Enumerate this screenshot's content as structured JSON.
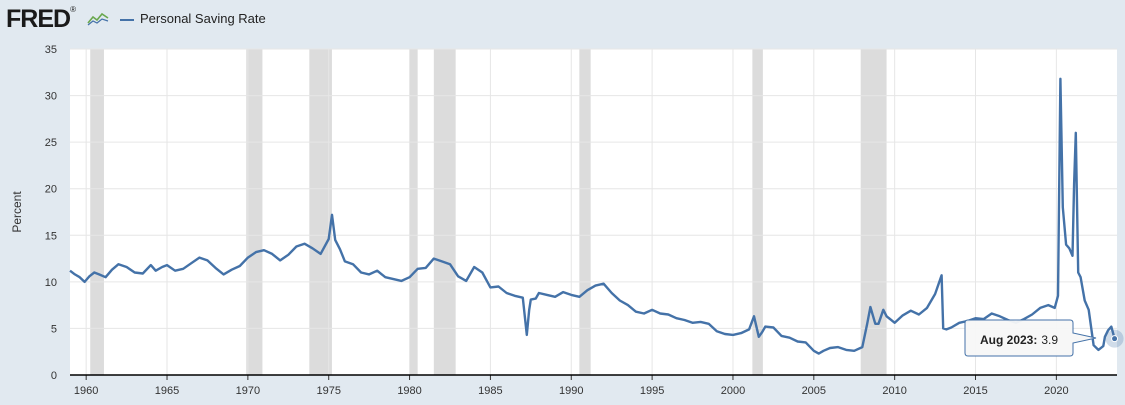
{
  "header": {
    "logo_text": "FRED",
    "logo_mark": "®",
    "legend_label": "Personal Saving Rate"
  },
  "tooltip": {
    "label": "Aug 2023:",
    "value": "3.9"
  },
  "colors": {
    "series": "#4472a8",
    "recession": "#dcdcdc",
    "background": "#e1e9f0",
    "plot": "#ffffff"
  },
  "chart_data": {
    "type": "line",
    "title": "Personal Saving Rate",
    "xlabel": "",
    "ylabel": "Percent",
    "xlim": [
      1959.0,
      2023.75
    ],
    "ylim": [
      0,
      35
    ],
    "y_ticks": [
      0,
      5,
      10,
      15,
      20,
      25,
      30,
      35
    ],
    "x_ticks": [
      1960,
      1965,
      1970,
      1975,
      1980,
      1985,
      1990,
      1995,
      2000,
      2005,
      2010,
      2015,
      2020
    ],
    "grid": true,
    "recessions": [
      [
        1960.25,
        1961.1
      ],
      [
        1969.9,
        1970.9
      ],
      [
        1973.8,
        1975.2
      ],
      [
        1980.0,
        1980.5
      ],
      [
        1981.5,
        1982.85
      ],
      [
        1990.5,
        1991.2
      ],
      [
        2001.2,
        2001.85
      ],
      [
        2007.9,
        2009.5
      ]
    ],
    "series": [
      {
        "name": "Personal Saving Rate",
        "x": [
          1959.0,
          1959.3,
          1959.6,
          1959.9,
          1960.2,
          1960.5,
          1960.8,
          1961.2,
          1961.6,
          1962.0,
          1962.5,
          1963.0,
          1963.5,
          1964.0,
          1964.3,
          1964.7,
          1965.0,
          1965.5,
          1966.0,
          1966.5,
          1967.0,
          1967.5,
          1968.0,
          1968.5,
          1969.0,
          1969.5,
          1970.0,
          1970.5,
          1971.0,
          1971.5,
          1972.0,
          1972.5,
          1973.0,
          1973.5,
          1974.0,
          1974.5,
          1975.0,
          1975.2,
          1975.4,
          1975.7,
          1976.0,
          1976.5,
          1977.0,
          1977.5,
          1978.0,
          1978.5,
          1979.0,
          1979.5,
          1980.0,
          1980.5,
          1981.0,
          1981.5,
          1982.0,
          1982.5,
          1983.0,
          1983.5,
          1984.0,
          1984.5,
          1985.0,
          1985.5,
          1986.0,
          1986.5,
          1987.0,
          1987.25,
          1987.4,
          1987.5,
          1987.8,
          1988.0,
          1988.5,
          1989.0,
          1989.5,
          1990.0,
          1990.5,
          1991.0,
          1991.5,
          1992.0,
          1992.5,
          1993.0,
          1993.5,
          1994.0,
          1994.5,
          1995.0,
          1995.5,
          1996.0,
          1996.5,
          1997.0,
          1997.5,
          1998.0,
          1998.5,
          1999.0,
          1999.5,
          2000.0,
          2000.5,
          2001.0,
          2001.3,
          2001.6,
          2001.8,
          2002.0,
          2002.5,
          2003.0,
          2003.5,
          2004.0,
          2004.5,
          2005.0,
          2005.3,
          2005.6,
          2006.0,
          2006.5,
          2007.0,
          2007.5,
          2008.0,
          2008.3,
          2008.5,
          2008.8,
          2009.0,
          2009.3,
          2009.5,
          2010.0,
          2010.5,
          2011.0,
          2011.5,
          2012.0,
          2012.5,
          2012.9,
          2013.0,
          2013.2,
          2013.5,
          2014.0,
          2014.5,
          2015.0,
          2015.5,
          2016.0,
          2016.5,
          2017.0,
          2017.5,
          2018.0,
          2018.5,
          2019.0,
          2019.5,
          2019.9,
          2020.1,
          2020.25,
          2020.4,
          2020.6,
          2020.8,
          2021.0,
          2021.1,
          2021.2,
          2021.35,
          2021.5,
          2021.75,
          2022.0,
          2022.3,
          2022.6,
          2022.9,
          2023.0,
          2023.2,
          2023.4,
          2023.6
        ],
        "values": [
          11.2,
          10.8,
          10.5,
          10.0,
          10.6,
          11.0,
          10.8,
          10.5,
          11.3,
          11.9,
          11.6,
          11.0,
          10.9,
          11.8,
          11.2,
          11.6,
          11.8,
          11.2,
          11.4,
          12.0,
          12.6,
          12.3,
          11.5,
          10.8,
          11.3,
          11.7,
          12.6,
          13.2,
          13.4,
          13.0,
          12.3,
          12.9,
          13.8,
          14.1,
          13.6,
          13.0,
          14.6,
          17.2,
          14.5,
          13.5,
          12.2,
          11.9,
          11.0,
          10.8,
          11.2,
          10.5,
          10.3,
          10.1,
          10.5,
          11.4,
          11.5,
          12.5,
          12.2,
          11.9,
          10.6,
          10.1,
          11.6,
          11.0,
          9.4,
          9.5,
          8.8,
          8.5,
          8.3,
          4.3,
          7.0,
          8.1,
          8.2,
          8.8,
          8.6,
          8.4,
          8.9,
          8.6,
          8.4,
          9.1,
          9.6,
          9.8,
          8.8,
          8.0,
          7.5,
          6.8,
          6.6,
          7.0,
          6.6,
          6.5,
          6.1,
          5.9,
          5.6,
          5.7,
          5.5,
          4.7,
          4.4,
          4.3,
          4.5,
          4.9,
          6.3,
          4.1,
          4.6,
          5.2,
          5.1,
          4.2,
          4.0,
          3.6,
          3.5,
          2.6,
          2.3,
          2.6,
          2.9,
          3.0,
          2.7,
          2.6,
          3.0,
          5.5,
          7.3,
          5.5,
          5.5,
          7.0,
          6.3,
          5.6,
          6.4,
          6.9,
          6.5,
          7.2,
          8.7,
          10.7,
          5.0,
          4.9,
          5.1,
          5.6,
          5.8,
          6.1,
          6.0,
          6.6,
          6.3,
          5.9,
          5.6,
          6.0,
          6.5,
          7.2,
          7.5,
          7.2,
          8.5,
          31.8,
          18.0,
          14.0,
          13.6,
          12.8,
          20.5,
          26.0,
          11.0,
          10.5,
          8.0,
          7.0,
          3.2,
          2.7,
          3.1,
          4.1,
          4.8,
          5.2,
          3.9
        ]
      }
    ]
  }
}
